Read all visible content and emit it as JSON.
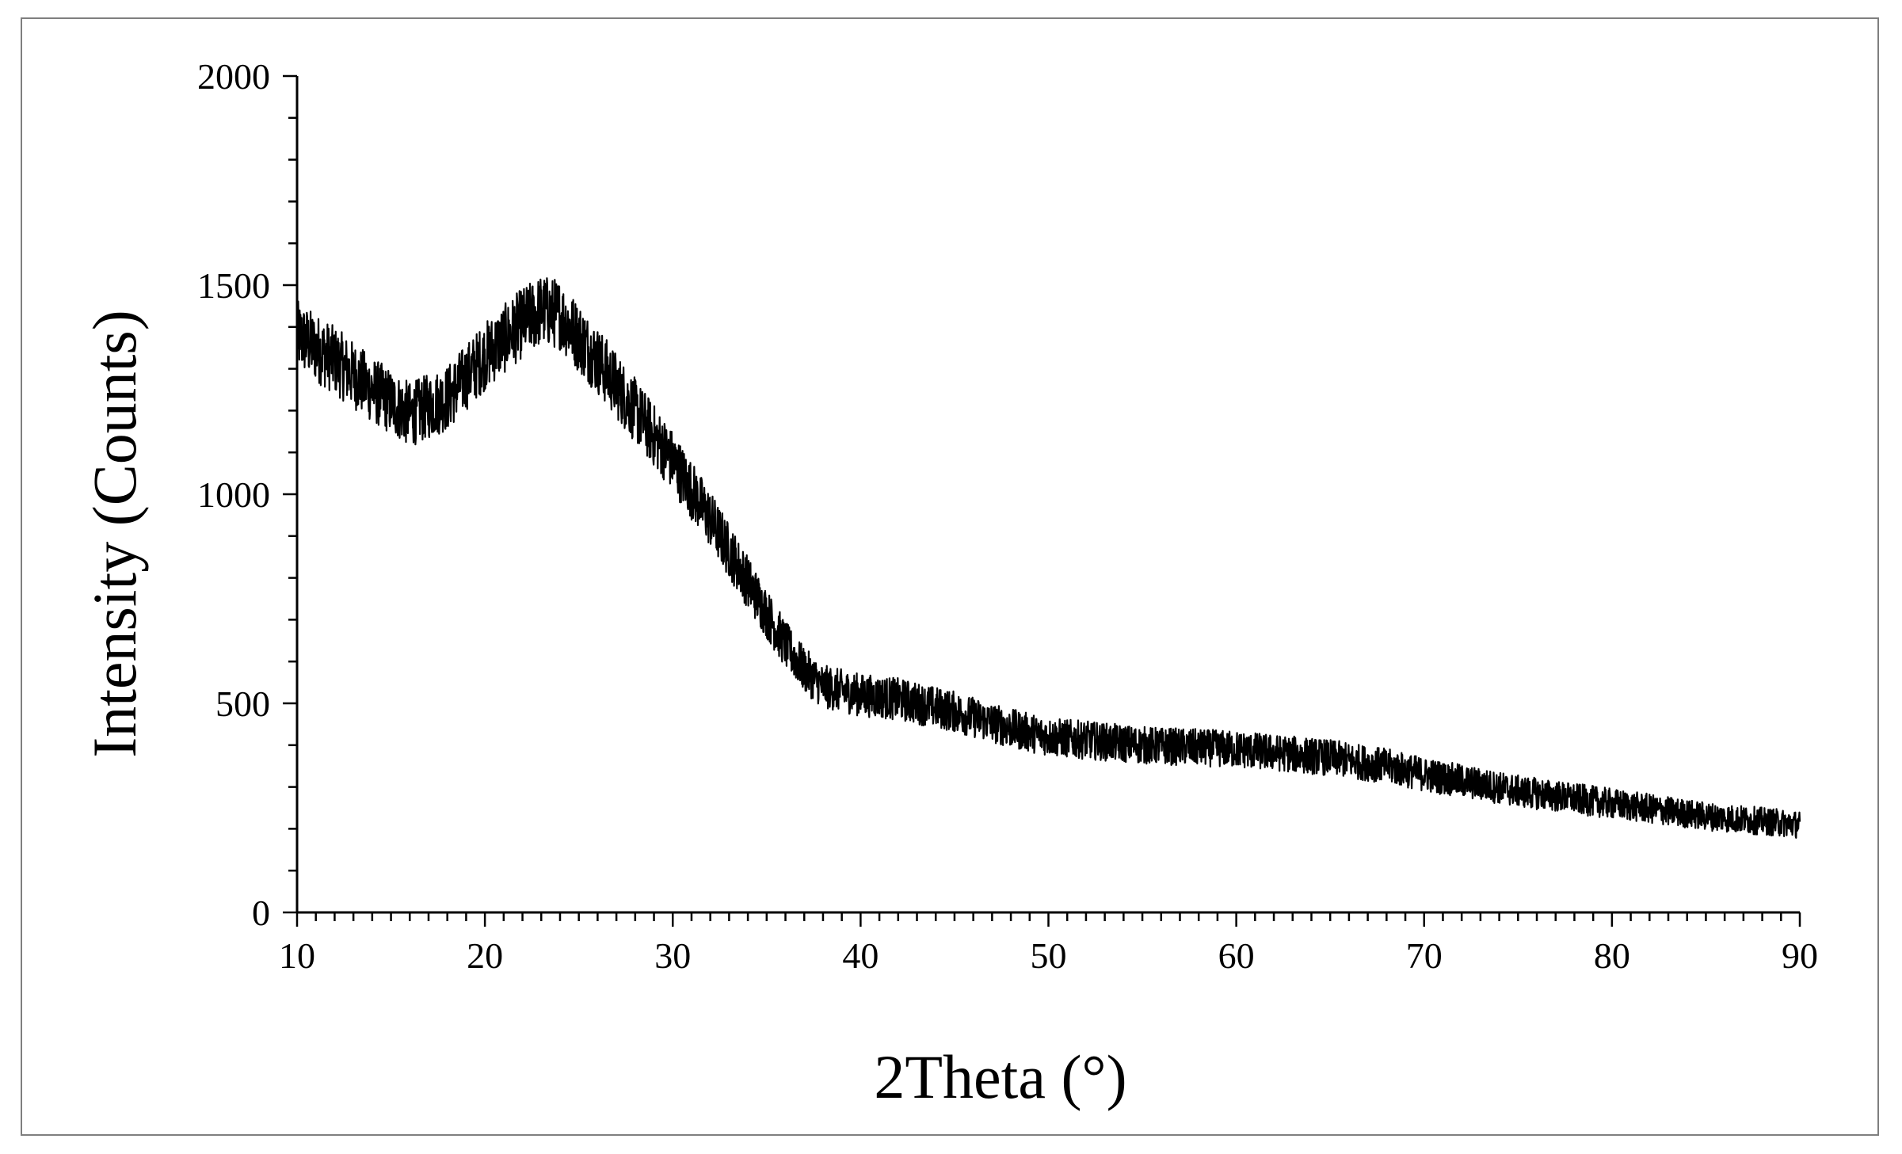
{
  "chart_data": {
    "type": "line",
    "title": "",
    "xlabel": "2Theta (°)",
    "ylabel": "Intensity (Counts)",
    "xlim": [
      10,
      90
    ],
    "ylim": [
      0,
      2000
    ],
    "x_ticks": [
      10,
      20,
      30,
      40,
      50,
      60,
      70,
      80,
      90
    ],
    "x_tick_labels": [
      "10",
      "20",
      "30",
      "40",
      "50",
      "60",
      "70",
      "80",
      "90"
    ],
    "y_ticks": [
      0,
      500,
      1000,
      1500,
      2000
    ],
    "y_tick_labels": [
      "0",
      "500",
      "1000",
      "1500",
      "2000"
    ],
    "x_minor_step": 1,
    "y_minor_step": 100,
    "grid": false,
    "legend": "none",
    "line_color": "#000000",
    "noise_amplitude": 45,
    "series": [
      {
        "x": [
          10,
          12,
          14,
          16,
          18,
          20,
          22,
          23,
          24,
          26,
          28,
          30,
          32,
          34,
          36,
          37,
          38,
          40,
          42,
          45,
          48,
          50,
          55,
          60,
          65,
          68,
          70,
          75,
          80,
          85,
          90
        ],
        "values": [
          1380,
          1320,
          1250,
          1190,
          1230,
          1330,
          1410,
          1440,
          1430,
          1320,
          1200,
          1080,
          940,
          790,
          640,
          580,
          540,
          520,
          510,
          480,
          440,
          420,
          400,
          390,
          370,
          350,
          330,
          290,
          260,
          230,
          210
        ]
      }
    ]
  }
}
